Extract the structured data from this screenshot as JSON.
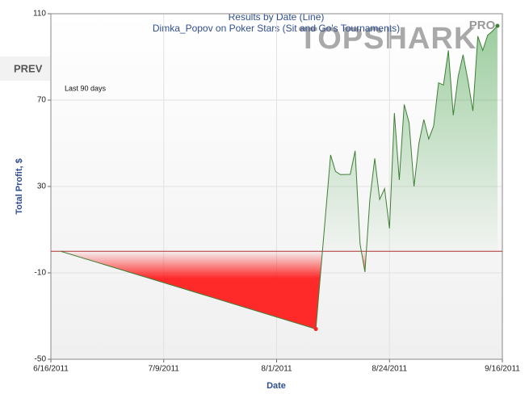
{
  "nav": {
    "prev": "PREV"
  },
  "logo": {
    "text": "TOPSHARK",
    "badge": "PRO"
  },
  "chart_data": {
    "type": "line",
    "title": "Results by Date (Line)",
    "subtitle": "Dimka_Popov on Poker Stars (Sit and Go's Tournaments)",
    "annotation": "Last 90 days",
    "x_label": "Date",
    "y_label": "Total Profit, $",
    "xlim": [
      "6/16/2011",
      "9/16/2011"
    ],
    "xticks": [
      "6/16/2011",
      "7/9/2011",
      "8/1/2011",
      "8/24/2011",
      "9/16/2011"
    ],
    "ylim": [
      -50,
      110
    ],
    "yticks": [
      -50,
      -10,
      30,
      70,
      110
    ],
    "grid": true,
    "x": [
      "6/18/2011",
      "8/9/2011",
      "8/12/2011",
      "8/13/2011",
      "8/14/2011",
      "8/16/2011",
      "8/17/2011",
      "8/18/2011",
      "8/19/2011",
      "8/20/2011",
      "8/21/2011",
      "8/22/2011",
      "8/23/2011",
      "8/24/2011",
      "8/25/2011",
      "8/26/2011",
      "8/27/2011",
      "8/28/2011",
      "8/29/2011",
      "8/30/2011",
      "8/31/2011",
      "9/1/2011",
      "9/2/2011",
      "9/3/2011",
      "9/4/2011",
      "9/5/2011",
      "9/6/2011",
      "9/7/2011",
      "9/8/2011",
      "9/9/2011",
      "9/10/2011",
      "9/11/2011",
      "9/12/2011",
      "9/13/2011",
      "9/14/2011",
      "9/15/2011"
    ],
    "series": [
      {
        "name": "Total Profit",
        "color": "#3f7f35",
        "positive_color": "#43a047",
        "negative_color": "#ff2020",
        "values": [
          0,
          -36,
          44.6,
          37,
          35.5,
          35.6,
          46.5,
          3.5,
          -9.6,
          24,
          43,
          24,
          29,
          10.6,
          64,
          33,
          68,
          59.5,
          30,
          50,
          61,
          52,
          58,
          78,
          77,
          93,
          63,
          81,
          91,
          79,
          65,
          99.6,
          93,
          100,
          102,
          104.4
        ]
      }
    ]
  }
}
